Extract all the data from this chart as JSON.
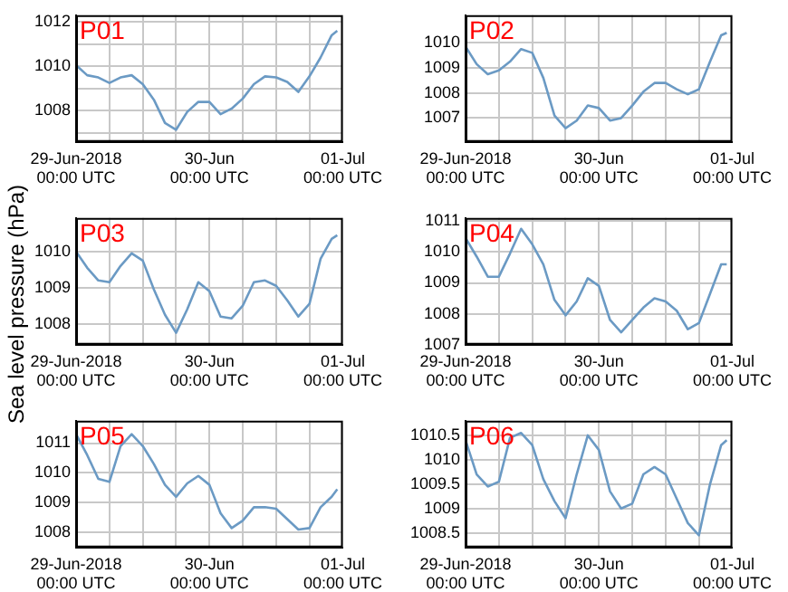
{
  "chart_data": [
    {
      "type": "line",
      "title": "P01",
      "grid": true,
      "xlim": [
        "2018-06-29T00:00",
        "2018-07-01T00:00"
      ],
      "xticks": [
        {
          "value": "2018-06-29T00:00",
          "label": "29-Jun-2018\n00:00 UTC"
        },
        {
          "value": "2018-06-29T06:00",
          "label": null
        },
        {
          "value": "2018-06-29T12:00",
          "label": null
        },
        {
          "value": "2018-06-29T18:00",
          "label": null
        },
        {
          "value": "2018-06-30T00:00",
          "label": "30-Jun\n00:00 UTC"
        },
        {
          "value": "2018-06-30T06:00",
          "label": null
        },
        {
          "value": "2018-06-30T12:00",
          "label": null
        },
        {
          "value": "2018-06-30T18:00",
          "label": null
        },
        {
          "value": "2018-07-01T00:00",
          "label": "01-Jul\n00:00 UTC"
        }
      ],
      "ylim": [
        1006.6,
        1012.3
      ],
      "yticks": [
        {
          "value": 1007,
          "label": null
        },
        1008,
        {
          "value": 1009,
          "label": null
        },
        1010,
        {
          "value": 1011,
          "label": null
        },
        1012
      ],
      "x": [
        "2018-06-29T00:00",
        "2018-06-29T02:00",
        "2018-06-29T04:00",
        "2018-06-29T06:00",
        "2018-06-29T08:00",
        "2018-06-29T10:00",
        "2018-06-29T12:00",
        "2018-06-29T14:00",
        "2018-06-29T16:00",
        "2018-06-29T18:00",
        "2018-06-29T20:00",
        "2018-06-29T22:00",
        "2018-06-30T00:00",
        "2018-06-30T02:00",
        "2018-06-30T04:00",
        "2018-06-30T06:00",
        "2018-06-30T08:00",
        "2018-06-30T10:00",
        "2018-06-30T12:00",
        "2018-06-30T14:00",
        "2018-06-30T16:00",
        "2018-06-30T18:00",
        "2018-06-30T20:00",
        "2018-06-30T22:00",
        "2018-06-30T23:00"
      ],
      "series": [
        {
          "color": "#6b9ac4",
          "values": [
            1010.05,
            1009.6,
            1009.5,
            1009.25,
            1009.5,
            1009.6,
            1009.2,
            1008.5,
            1007.45,
            1007.15,
            1007.95,
            1008.4,
            1008.4,
            1007.85,
            1008.1,
            1008.55,
            1009.2,
            1009.55,
            1009.5,
            1009.3,
            1008.85,
            1009.55,
            1010.4,
            1011.4,
            1011.6
          ]
        }
      ]
    },
    {
      "type": "line",
      "title": "P02",
      "grid": true,
      "xlim": [
        "2018-06-29T00:00",
        "2018-07-01T00:00"
      ],
      "xticks": [
        {
          "value": "2018-06-29T00:00",
          "label": "29-Jun-2018\n00:00 UTC"
        },
        {
          "value": "2018-06-29T06:00",
          "label": null
        },
        {
          "value": "2018-06-29T12:00",
          "label": null
        },
        {
          "value": "2018-06-29T18:00",
          "label": null
        },
        {
          "value": "2018-06-30T00:00",
          "label": "30-Jun\n00:00 UTC"
        },
        {
          "value": "2018-06-30T06:00",
          "label": null
        },
        {
          "value": "2018-06-30T12:00",
          "label": null
        },
        {
          "value": "2018-06-30T18:00",
          "label": null
        },
        {
          "value": "2018-07-01T00:00",
          "label": "01-Jul\n00:00 UTC"
        }
      ],
      "ylim": [
        1006.05,
        1011.1
      ],
      "yticks": [
        1007,
        1008,
        1009,
        1010
      ],
      "x": [
        "2018-06-29T00:00",
        "2018-06-29T02:00",
        "2018-06-29T04:00",
        "2018-06-29T06:00",
        "2018-06-29T08:00",
        "2018-06-29T10:00",
        "2018-06-29T12:00",
        "2018-06-29T14:00",
        "2018-06-29T16:00",
        "2018-06-29T18:00",
        "2018-06-29T20:00",
        "2018-06-29T22:00",
        "2018-06-30T00:00",
        "2018-06-30T02:00",
        "2018-06-30T04:00",
        "2018-06-30T06:00",
        "2018-06-30T08:00",
        "2018-06-30T10:00",
        "2018-06-30T12:00",
        "2018-06-30T14:00",
        "2018-06-30T16:00",
        "2018-06-30T18:00",
        "2018-06-30T20:00",
        "2018-06-30T22:00",
        "2018-06-30T23:00"
      ],
      "series": [
        {
          "color": "#6b9ac4",
          "values": [
            1009.85,
            1009.15,
            1008.75,
            1008.9,
            1009.25,
            1009.75,
            1009.6,
            1008.6,
            1007.1,
            1006.6,
            1006.9,
            1007.5,
            1007.4,
            1006.9,
            1007.0,
            1007.5,
            1008.05,
            1008.4,
            1008.4,
            1008.15,
            1007.95,
            1008.15,
            1009.25,
            1010.3,
            1010.4
          ]
        }
      ]
    },
    {
      "type": "line",
      "title": "P03",
      "ylabel": "Sea level pressure (hPa)",
      "grid": true,
      "xlim": [
        "2018-06-29T00:00",
        "2018-07-01T00:00"
      ],
      "xticks": [
        {
          "value": "2018-06-29T00:00",
          "label": "29-Jun-2018\n00:00 UTC"
        },
        {
          "value": "2018-06-29T06:00",
          "label": null
        },
        {
          "value": "2018-06-29T12:00",
          "label": null
        },
        {
          "value": "2018-06-29T18:00",
          "label": null
        },
        {
          "value": "2018-06-30T00:00",
          "label": "30-Jun\n00:00 UTC"
        },
        {
          "value": "2018-06-30T06:00",
          "label": null
        },
        {
          "value": "2018-06-30T12:00",
          "label": null
        },
        {
          "value": "2018-06-30T18:00",
          "label": null
        },
        {
          "value": "2018-07-01T00:00",
          "label": "01-Jul\n00:00 UTC"
        }
      ],
      "ylim": [
        1007.42,
        1010.93
      ],
      "yticks": [
        1008,
        1009,
        1010
      ],
      "x": [
        "2018-06-29T00:00",
        "2018-06-29T02:00",
        "2018-06-29T04:00",
        "2018-06-29T06:00",
        "2018-06-29T08:00",
        "2018-06-29T10:00",
        "2018-06-29T12:00",
        "2018-06-29T14:00",
        "2018-06-29T16:00",
        "2018-06-29T18:00",
        "2018-06-29T20:00",
        "2018-06-29T22:00",
        "2018-06-30T00:00",
        "2018-06-30T02:00",
        "2018-06-30T04:00",
        "2018-06-30T06:00",
        "2018-06-30T08:00",
        "2018-06-30T10:00",
        "2018-06-30T12:00",
        "2018-06-30T14:00",
        "2018-06-30T16:00",
        "2018-06-30T18:00",
        "2018-06-30T20:00",
        "2018-06-30T22:00",
        "2018-06-30T23:00"
      ],
      "series": [
        {
          "color": "#6b9ac4",
          "values": [
            1010.0,
            1009.55,
            1009.2,
            1009.15,
            1009.6,
            1009.95,
            1009.75,
            1008.95,
            1008.25,
            1007.75,
            1008.4,
            1009.15,
            1008.9,
            1008.2,
            1008.15,
            1008.5,
            1009.15,
            1009.2,
            1009.05,
            1008.65,
            1008.2,
            1008.55,
            1009.8,
            1010.35,
            1010.45
          ]
        }
      ]
    },
    {
      "type": "line",
      "title": "P04",
      "grid": true,
      "xlim": [
        "2018-06-29T00:00",
        "2018-07-01T00:00"
      ],
      "xticks": [
        {
          "value": "2018-06-29T00:00",
          "label": "29-Jun-2018\n00:00 UTC"
        },
        {
          "value": "2018-06-29T06:00",
          "label": null
        },
        {
          "value": "2018-06-29T12:00",
          "label": null
        },
        {
          "value": "2018-06-29T18:00",
          "label": null
        },
        {
          "value": "2018-06-30T00:00",
          "label": "30-Jun\n00:00 UTC"
        },
        {
          "value": "2018-06-30T06:00",
          "label": null
        },
        {
          "value": "2018-06-30T12:00",
          "label": null
        },
        {
          "value": "2018-06-30T18:00",
          "label": null
        },
        {
          "value": "2018-07-01T00:00",
          "label": "01-Jul\n00:00 UTC"
        }
      ],
      "ylim": [
        1007,
        1011.1
      ],
      "yticks": [
        1007,
        1008,
        1009,
        1010,
        1011
      ],
      "x": [
        "2018-06-29T00:00",
        "2018-06-29T02:00",
        "2018-06-29T04:00",
        "2018-06-29T06:00",
        "2018-06-29T08:00",
        "2018-06-29T10:00",
        "2018-06-29T12:00",
        "2018-06-29T14:00",
        "2018-06-29T16:00",
        "2018-06-29T18:00",
        "2018-06-29T20:00",
        "2018-06-29T22:00",
        "2018-06-30T00:00",
        "2018-06-30T02:00",
        "2018-06-30T04:00",
        "2018-06-30T06:00",
        "2018-06-30T08:00",
        "2018-06-30T10:00",
        "2018-06-30T12:00",
        "2018-06-30T14:00",
        "2018-06-30T16:00",
        "2018-06-30T18:00",
        "2018-06-30T20:00",
        "2018-06-30T22:00",
        "2018-06-30T23:00"
      ],
      "series": [
        {
          "color": "#6b9ac4",
          "values": [
            1010.45,
            1009.85,
            1009.2,
            1009.2,
            1009.95,
            1010.75,
            1010.25,
            1009.6,
            1008.45,
            1007.95,
            1008.4,
            1009.15,
            1008.9,
            1007.8,
            1007.4,
            1007.8,
            1008.2,
            1008.5,
            1008.4,
            1008.1,
            1007.5,
            1007.7,
            1008.65,
            1009.6,
            1009.6
          ]
        }
      ]
    },
    {
      "type": "line",
      "title": "P05",
      "grid": true,
      "xlim": [
        "2018-06-29T00:00",
        "2018-07-01T00:00"
      ],
      "xticks": [
        {
          "value": "2018-06-29T00:00",
          "label": "29-Jun-2018\n00:00 UTC"
        },
        {
          "value": "2018-06-29T06:00",
          "label": null
        },
        {
          "value": "2018-06-29T12:00",
          "label": null
        },
        {
          "value": "2018-06-29T18:00",
          "label": null
        },
        {
          "value": "2018-06-30T00:00",
          "label": "30-Jun\n00:00 UTC"
        },
        {
          "value": "2018-06-30T06:00",
          "label": null
        },
        {
          "value": "2018-06-30T12:00",
          "label": null
        },
        {
          "value": "2018-06-30T18:00",
          "label": null
        },
        {
          "value": "2018-07-01T00:00",
          "label": "01-Jul\n00:00 UTC"
        }
      ],
      "ylim": [
        1007.5,
        1011.75
      ],
      "yticks": [
        1008,
        1009,
        1010,
        1011
      ],
      "x": [
        "2018-06-29T00:00",
        "2018-06-29T02:00",
        "2018-06-29T04:00",
        "2018-06-29T06:00",
        "2018-06-29T08:00",
        "2018-06-29T10:00",
        "2018-06-29T12:00",
        "2018-06-29T14:00",
        "2018-06-29T16:00",
        "2018-06-29T18:00",
        "2018-06-29T20:00",
        "2018-06-29T22:00",
        "2018-06-30T00:00",
        "2018-06-30T02:00",
        "2018-06-30T04:00",
        "2018-06-30T06:00",
        "2018-06-30T08:00",
        "2018-06-30T10:00",
        "2018-06-30T12:00",
        "2018-06-30T14:00",
        "2018-06-30T16:00",
        "2018-06-30T18:00",
        "2018-06-30T20:00",
        "2018-06-30T22:00",
        "2018-06-30T23:00"
      ],
      "series": [
        {
          "color": "#6b9ac4",
          "values": [
            1011.3,
            1010.6,
            1009.8,
            1009.7,
            1010.9,
            1011.3,
            1010.9,
            1010.3,
            1009.6,
            1009.2,
            1009.65,
            1009.9,
            1009.6,
            1008.65,
            1008.15,
            1008.4,
            1008.85,
            1008.85,
            1008.8,
            1008.45,
            1008.1,
            1008.15,
            1008.85,
            1009.2,
            1009.45
          ]
        }
      ]
    },
    {
      "type": "line",
      "title": "P06",
      "grid": true,
      "xlim": [
        "2018-06-29T00:00",
        "2018-07-01T00:00"
      ],
      "xticks": [
        {
          "value": "2018-06-29T00:00",
          "label": "29-Jun-2018\n00:00 UTC"
        },
        {
          "value": "2018-06-29T06:00",
          "label": null
        },
        {
          "value": "2018-06-29T12:00",
          "label": null
        },
        {
          "value": "2018-06-29T18:00",
          "label": null
        },
        {
          "value": "2018-06-30T00:00",
          "label": "30-Jun\n00:00 UTC"
        },
        {
          "value": "2018-06-30T06:00",
          "label": null
        },
        {
          "value": "2018-06-30T12:00",
          "label": null
        },
        {
          "value": "2018-06-30T18:00",
          "label": null
        },
        {
          "value": "2018-07-01T00:00",
          "label": "01-Jul\n00:00 UTC"
        }
      ],
      "ylim": [
        1008.2,
        1010.8
      ],
      "yticks": [
        1008.5,
        1009,
        1009.5,
        1010,
        1010.5
      ],
      "x": [
        "2018-06-29T00:00",
        "2018-06-29T02:00",
        "2018-06-29T04:00",
        "2018-06-29T06:00",
        "2018-06-29T08:00",
        "2018-06-29T10:00",
        "2018-06-29T12:00",
        "2018-06-29T14:00",
        "2018-06-29T16:00",
        "2018-06-29T18:00",
        "2018-06-29T20:00",
        "2018-06-29T22:00",
        "2018-06-30T00:00",
        "2018-06-30T02:00",
        "2018-06-30T04:00",
        "2018-06-30T06:00",
        "2018-06-30T08:00",
        "2018-06-30T10:00",
        "2018-06-30T12:00",
        "2018-06-30T14:00",
        "2018-06-30T16:00",
        "2018-06-30T18:00",
        "2018-06-30T20:00",
        "2018-06-30T22:00",
        "2018-06-30T23:00"
      ],
      "series": [
        {
          "color": "#6b9ac4",
          "values": [
            1010.4,
            1009.7,
            1009.45,
            1009.55,
            1010.45,
            1010.55,
            1010.3,
            1009.6,
            1009.15,
            1008.8,
            1009.7,
            1010.5,
            1010.2,
            1009.35,
            1009.0,
            1009.1,
            1009.7,
            1009.85,
            1009.7,
            1009.2,
            1008.7,
            1008.45,
            1009.5,
            1010.3,
            1010.4
          ]
        }
      ]
    }
  ]
}
